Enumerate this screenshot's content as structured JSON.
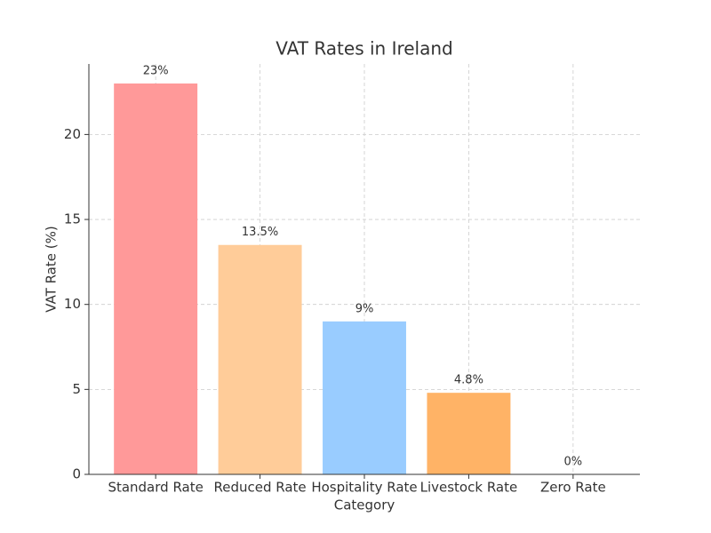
{
  "chart_data": {
    "type": "bar",
    "title": "VAT Rates in Ireland",
    "x_label": "Category",
    "y_label": "VAT Rate (%)",
    "categories": [
      "Standard Rate",
      "Reduced Rate",
      "Hospitality Rate",
      "Livestock Rate",
      "Zero Rate"
    ],
    "values": [
      23,
      13.5,
      9,
      4.8,
      0
    ],
    "value_labels": [
      "23%",
      "13.5%",
      "9%",
      "4.8%",
      "0%"
    ],
    "colors": [
      "#ff9999",
      "#ffcc99",
      "#99ccff",
      "#ffb366",
      "#c2c2f0"
    ],
    "ylim": [
      0,
      24.15
    ],
    "yticks": [
      0,
      5,
      10,
      15,
      20
    ],
    "grid": true
  }
}
